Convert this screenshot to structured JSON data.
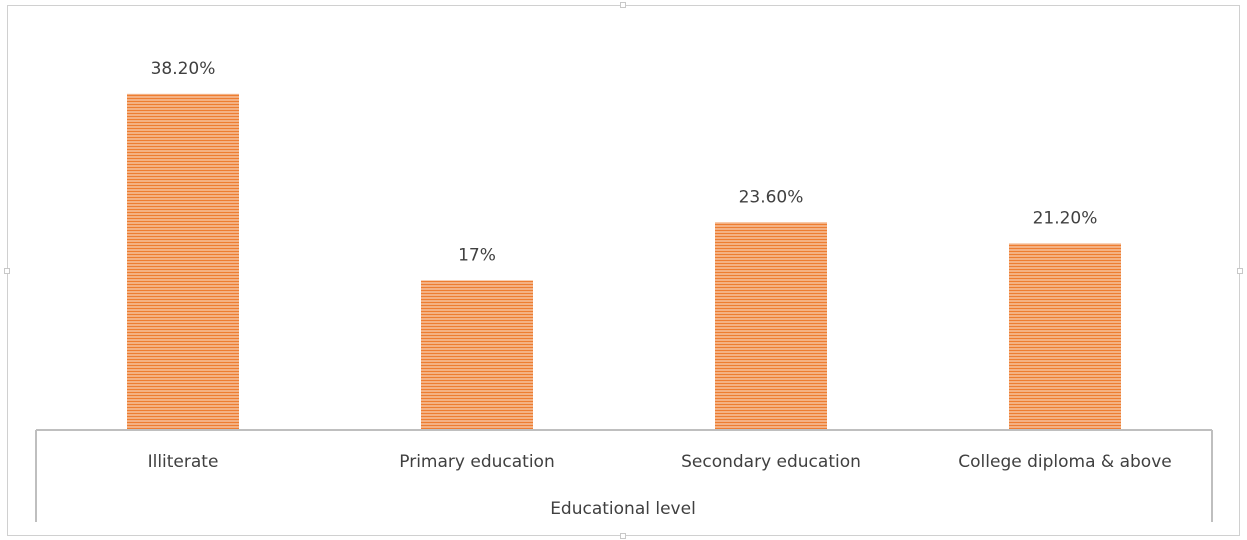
{
  "colors": {
    "bar_fill": "#f4b183",
    "bar_stripe": "#ed7d31",
    "axis_line": "#bfbfbf",
    "text": "#404040"
  },
  "chart_data": {
    "type": "bar",
    "title": "",
    "xlabel": "Educational level",
    "ylabel": "",
    "categories": [
      "Illiterate",
      "Primary education",
      "Secondary education",
      "College diploma & above"
    ],
    "values": [
      38.2,
      17,
      23.6,
      21.2
    ],
    "data_labels": [
      "38.20%",
      "17%",
      "23.60%",
      "21.20%"
    ],
    "ylim": [
      0,
      40
    ],
    "grid": false,
    "legend": "none"
  }
}
